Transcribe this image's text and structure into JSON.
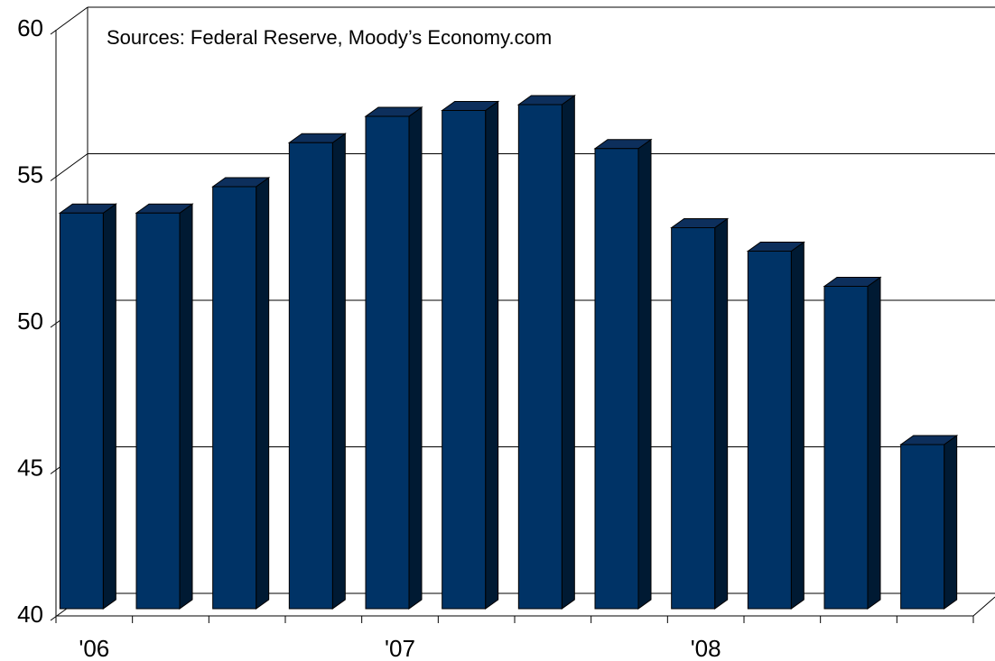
{
  "chart_data": {
    "type": "bar3d",
    "annotation": "Sources: Federal Reserve, Moody’s Economy.com",
    "categories": [
      "'06",
      null,
      null,
      null,
      "'07",
      null,
      null,
      null,
      "'08",
      null,
      null,
      null
    ],
    "values": [
      53.5,
      53.5,
      54.4,
      55.9,
      56.8,
      57.0,
      57.2,
      55.7,
      53.0,
      52.2,
      51.0,
      45.6
    ],
    "color": "#003366",
    "ylim": [
      40,
      60
    ],
    "yticks": [
      40,
      45,
      50,
      55,
      60
    ],
    "grid": true
  }
}
